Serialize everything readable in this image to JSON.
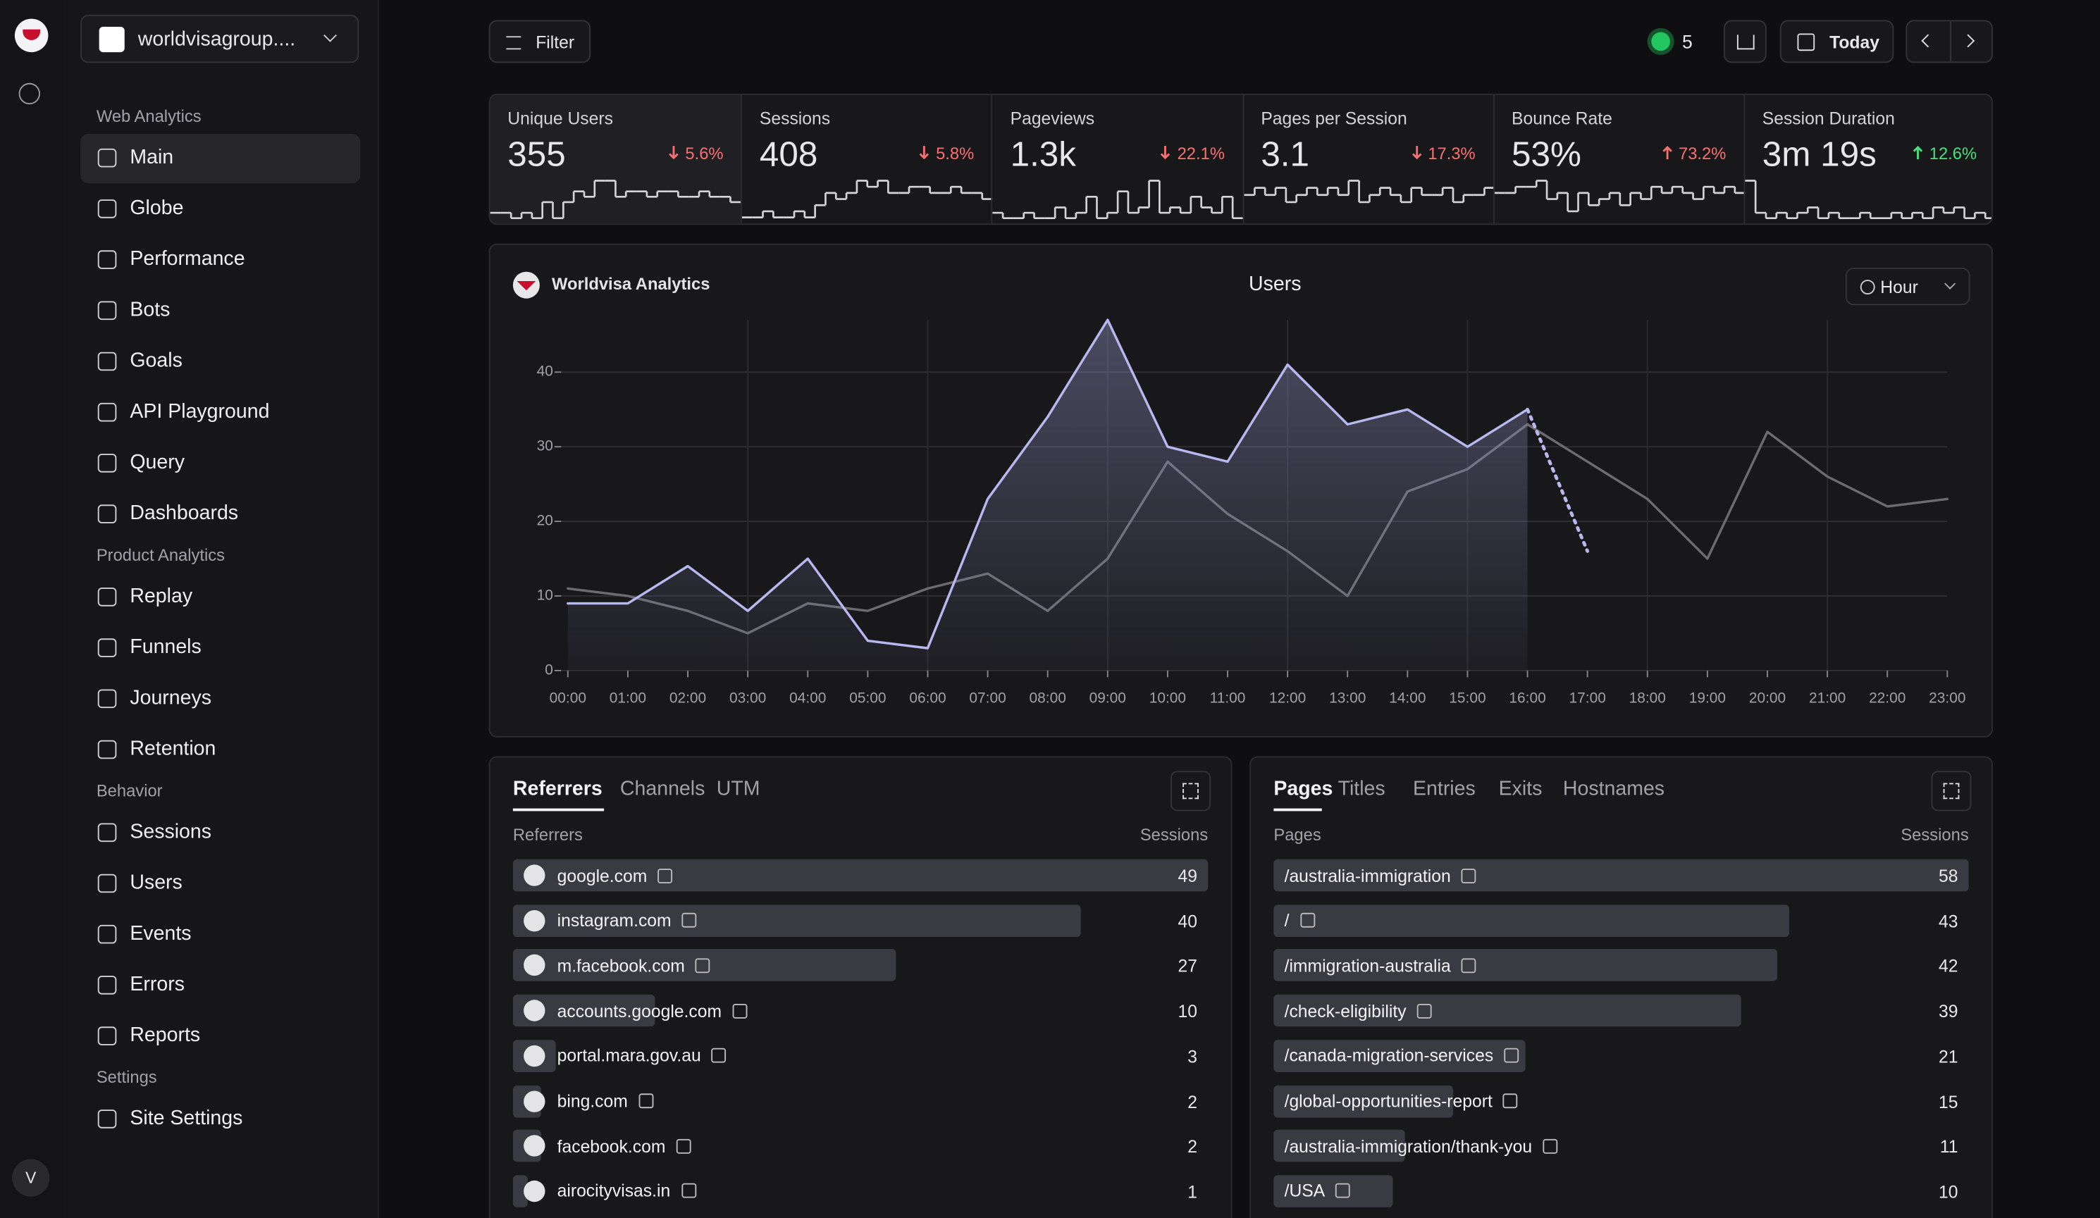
{
  "site": "worldvisagroup....",
  "avatar": "V",
  "sidebar": {
    "sections": [
      {
        "title": "Web Analytics",
        "items": [
          "Main",
          "Globe",
          "Performance",
          "Bots",
          "Goals",
          "API Playground",
          "Query",
          "Dashboards"
        ]
      },
      {
        "title": "Product Analytics",
        "items": [
          "Replay",
          "Funnels",
          "Journeys",
          "Retention"
        ]
      },
      {
        "title": "Behavior",
        "items": [
          "Sessions",
          "Users",
          "Events",
          "Errors",
          "Reports"
        ]
      },
      {
        "title": "Settings",
        "items": [
          "Site Settings"
        ]
      }
    ],
    "active": "Main"
  },
  "toolbar": {
    "filter": "Filter",
    "live": 5,
    "date": "Today"
  },
  "metrics": [
    {
      "label": "Unique Users",
      "value": "355",
      "change": "5.6%",
      "direction": "down",
      "change_color": "#f87171",
      "spark": [
        2,
        2,
        1,
        2,
        1,
        4,
        1,
        4,
        6,
        5,
        8,
        8,
        5,
        6,
        6,
        5,
        6,
        6,
        5,
        5,
        6,
        5,
        5,
        4
      ]
    },
    {
      "label": "Sessions",
      "value": "408",
      "change": "5.8%",
      "direction": "down",
      "change_color": "#f87171",
      "spark": [
        1,
        1,
        2,
        1,
        1,
        2,
        1,
        3,
        5,
        4,
        5,
        7,
        6,
        7,
        5,
        5,
        6,
        6,
        5,
        5,
        6,
        5,
        5,
        4
      ]
    },
    {
      "label": "Pageviews",
      "value": "1.3k",
      "change": "22.1%",
      "direction": "down",
      "change_color": "#f87171",
      "spark": [
        2,
        1,
        1,
        2,
        1,
        1,
        3,
        1,
        2,
        5,
        1,
        2,
        6,
        2,
        3,
        8,
        2,
        3,
        2,
        5,
        3,
        2,
        5,
        1
      ]
    },
    {
      "label": "Pages per Session",
      "value": "3.1",
      "change": "17.3%",
      "direction": "down",
      "change_color": "#f87171",
      "spark": [
        4,
        5,
        4,
        5,
        3,
        4,
        5,
        4,
        5,
        4,
        6,
        3,
        4,
        5,
        4,
        3,
        5,
        4,
        4,
        5,
        3,
        4,
        4,
        5
      ]
    },
    {
      "label": "Bounce Rate",
      "value": "53%",
      "change": "73.2%",
      "direction": "up",
      "change_color": "#f87171",
      "spark": [
        5,
        5,
        6,
        6,
        7,
        4,
        5,
        2,
        5,
        3,
        4,
        5,
        3,
        5,
        4,
        6,
        5,
        6,
        5,
        4,
        6,
        5,
        6,
        5
      ]
    },
    {
      "label": "Session Duration",
      "value": "3m 19s",
      "change": "12.6%",
      "direction": "up",
      "change_color": "#4ade80",
      "spark": [
        8,
        2,
        1,
        2,
        1,
        2,
        3,
        1,
        2,
        1,
        1,
        2,
        1,
        1,
        2,
        1,
        2,
        1,
        3,
        2,
        3,
        1,
        2,
        1
      ]
    }
  ],
  "chart_data": {
    "type": "line",
    "site": "Worldvisa Analytics",
    "title": "Users",
    "interval": "Hour",
    "categories": [
      "00:00",
      "01:00",
      "02:00",
      "03:00",
      "04:00",
      "05:00",
      "06:00",
      "07:00",
      "08:00",
      "09:00",
      "10:00",
      "11:00",
      "12:00",
      "13:00",
      "14:00",
      "15:00",
      "16:00",
      "17:00",
      "18:00",
      "19:00",
      "20:00",
      "21:00",
      "22:00",
      "23:00"
    ],
    "series": [
      {
        "color": "#6b6b70",
        "style": "solid",
        "values": [
          11,
          10,
          8,
          5,
          9,
          8,
          11,
          13,
          8,
          15,
          28,
          21,
          16,
          10,
          24,
          27,
          33,
          28,
          23,
          15,
          32,
          26,
          22,
          23
        ]
      },
      {
        "color": "#b8b8f0",
        "style": "solid",
        "area": true,
        "values": [
          9,
          9,
          14,
          8,
          15,
          4,
          3,
          23,
          34,
          47,
          30,
          28,
          41,
          33,
          35,
          30,
          35,
          null,
          null,
          null,
          null,
          null,
          null,
          null
        ]
      },
      {
        "color": "#b8b8f0",
        "style": "dotted",
        "values": [
          null,
          null,
          null,
          null,
          null,
          null,
          null,
          null,
          null,
          null,
          null,
          null,
          null,
          null,
          null,
          null,
          35,
          16,
          null,
          null,
          null,
          null,
          null,
          null
        ]
      }
    ],
    "ylim": [
      0,
      47
    ],
    "yticks": [
      0,
      10,
      20,
      30,
      40
    ],
    "grid": true
  },
  "referrers": {
    "tabs": [
      "Referrers",
      "Channels",
      "UTM"
    ],
    "columns": [
      "Referrers",
      "Sessions"
    ],
    "rows": [
      {
        "name": "google.com",
        "value": 49
      },
      {
        "name": "instagram.com",
        "value": 40
      },
      {
        "name": "m.facebook.com",
        "value": 27
      },
      {
        "name": "accounts.google.com",
        "value": 10
      },
      {
        "name": "portal.mara.gov.au",
        "value": 3
      },
      {
        "name": "bing.com",
        "value": 2
      },
      {
        "name": "facebook.com",
        "value": 2
      },
      {
        "name": "airocityvisas.in",
        "value": 1
      }
    ]
  },
  "pages": {
    "tabs": [
      "Pages",
      "Titles",
      "Entries",
      "Exits",
      "Hostnames"
    ],
    "columns": [
      "Pages",
      "Sessions"
    ],
    "rows": [
      {
        "name": "/australia-immigration",
        "value": 58
      },
      {
        "name": "/",
        "value": 43
      },
      {
        "name": "/immigration-australia",
        "value": 42
      },
      {
        "name": "/check-eligibility",
        "value": 39
      },
      {
        "name": "/canada-migration-services",
        "value": 21
      },
      {
        "name": "/global-opportunities-report",
        "value": 15
      },
      {
        "name": "/australia-immigration/thank-you",
        "value": 11
      },
      {
        "name": "/USA",
        "value": 10
      }
    ]
  }
}
